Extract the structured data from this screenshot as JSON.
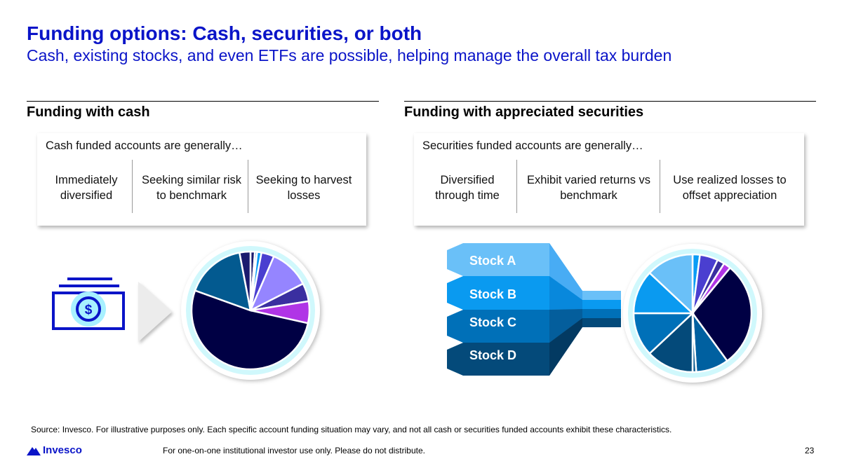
{
  "header": {
    "title": "Funding options: Cash, securities, or both",
    "subtitle": "Cash, existing stocks, and even ETFs are possible, helping manage the overall tax burden"
  },
  "cash": {
    "heading": "Funding with cash",
    "lead": "Cash funded accounts are generally…",
    "cols": [
      "Immediately diversified",
      "Seeking similar risk to benchmark",
      "Seeking to harvest losses"
    ]
  },
  "securities": {
    "heading": "Funding with appreciated securities",
    "lead": "Securities funded accounts are generally…",
    "cols": [
      "Diversified through time",
      "Exhibit varied returns vs benchmark",
      "Use realized losses to offset appreciation"
    ],
    "stocks": [
      "Stock A",
      "Stock B",
      "Stock C",
      "Stock D"
    ]
  },
  "chart_data": [
    {
      "type": "pie",
      "name": "cash-portfolio",
      "values": [
        1.2,
        0.6,
        1.2,
        3.5,
        11,
        5,
        6,
        52,
        16.5,
        3
      ],
      "colors": [
        "#1a1a6e",
        "#1a8fe0",
        "#0a9cf5",
        "#4a3fd0",
        "#9585ff",
        "#3a2fa0",
        "#b035e6",
        "#000044",
        "#035a90",
        "#1a1a6e"
      ]
    },
    {
      "type": "pie",
      "name": "securities-portfolio",
      "values": [
        2,
        5,
        2,
        2,
        29,
        9,
        1,
        13,
        12,
        12,
        13
      ],
      "colors": [
        "#0a9cf5",
        "#4a3fd0",
        "#3a2fa0",
        "#b035e6",
        "#000044",
        "#0060a0",
        "#0a5a90",
        "#044a7a",
        "#0070b8",
        "#0a9af0",
        "#6ac0f8"
      ]
    }
  ],
  "footer": {
    "source": "Source: Invesco. For illustrative purposes only.  Each specific account funding situation may vary, and not all cash or securities funded accounts exhibit these characteristics.",
    "disclaimer": "For one-on-one institutional investor use only. Please do not distribute.",
    "page": "23",
    "logo": "Invesco"
  }
}
